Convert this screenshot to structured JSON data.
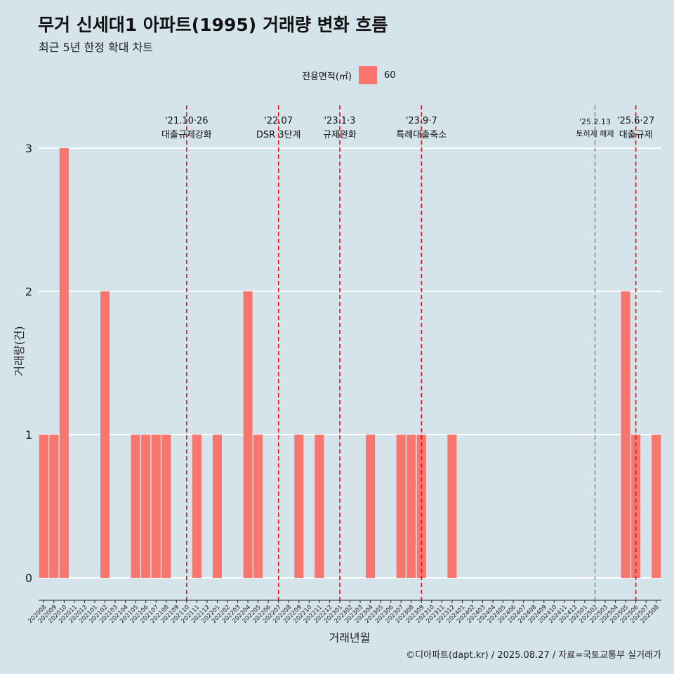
{
  "title": "무거 신세대1 아파트(1995) 거래량 변화 흐름",
  "subtitle": "최근 5년 한정 확대 차트",
  "legend": {
    "title": "전용면적(㎡)",
    "label": "60",
    "color": "#f8766d"
  },
  "caption": "©디아파트(dapt.kr) / 2025.08.27 / 자료=국토교통부 실거래가",
  "chart_data": {
    "type": "bar",
    "title": "무거 신세대1 아파트(1995) 거래량 변화 흐름",
    "xlabel": "거래년월",
    "ylabel": "거래량(건)",
    "ylim": [
      -0.15,
      3.3
    ],
    "yticks": [
      0,
      1,
      2,
      3
    ],
    "bar_color": "#f8766d",
    "categories": [
      "202008",
      "202009",
      "202010",
      "202011",
      "202012",
      "202101",
      "202102",
      "202103",
      "202104",
      "202105",
      "202106",
      "202107",
      "202108",
      "202109",
      "202110",
      "202111",
      "202112",
      "202201",
      "202202",
      "202203",
      "202204",
      "202205",
      "202206",
      "202207",
      "202208",
      "202209",
      "202210",
      "202211",
      "202212",
      "202301",
      "202302",
      "202303",
      "202304",
      "202305",
      "202306",
      "202307",
      "202308",
      "202309",
      "202310",
      "202311",
      "202312",
      "202401",
      "202402",
      "202403",
      "202404",
      "202405",
      "202406",
      "202407",
      "202408",
      "202409",
      "202410",
      "202411",
      "202412",
      "202501",
      "202502",
      "202503",
      "202504",
      "202505",
      "202506",
      "202507",
      "202508"
    ],
    "values": [
      1,
      1,
      3,
      0,
      0,
      0,
      2,
      0,
      0,
      1,
      1,
      1,
      1,
      0,
      0,
      1,
      0,
      1,
      0,
      0,
      2,
      1,
      0,
      0,
      0,
      1,
      0,
      1,
      0,
      0,
      0,
      0,
      1,
      0,
      0,
      1,
      1,
      1,
      0,
      0,
      1,
      0,
      0,
      0,
      0,
      0,
      0,
      0,
      0,
      0,
      0,
      0,
      0,
      0,
      0,
      0,
      0,
      2,
      1,
      0,
      1
    ],
    "series": [
      {
        "name": "60",
        "values": [
          1,
          1,
          3,
          0,
          0,
          0,
          2,
          0,
          0,
          1,
          1,
          1,
          1,
          0,
          0,
          1,
          0,
          1,
          0,
          0,
          2,
          1,
          0,
          0,
          0,
          1,
          0,
          1,
          0,
          0,
          0,
          0,
          1,
          0,
          0,
          1,
          1,
          1,
          0,
          0,
          1,
          0,
          0,
          0,
          0,
          0,
          0,
          0,
          0,
          0,
          0,
          0,
          0,
          0,
          0,
          0,
          0,
          2,
          1,
          0,
          1
        ]
      }
    ],
    "annotations": [
      {
        "at": "202110",
        "date": "'21.10·26",
        "label": "대출규제강화",
        "small": false
      },
      {
        "at": "202207",
        "date": "'22.07",
        "label": "DSR 3단계",
        "small": false
      },
      {
        "at": "202301",
        "date": "'23.1·3",
        "label": "규제완화",
        "small": false
      },
      {
        "at": "202309",
        "date": "'23.9·7",
        "label": "특례대출축소",
        "small": false
      },
      {
        "at": "202502",
        "date": "'25.2.13",
        "label": "토허제 해제",
        "small": true
      },
      {
        "at": "202506",
        "date": "'25.6·27",
        "label": "대출규제",
        "small": false
      }
    ]
  }
}
